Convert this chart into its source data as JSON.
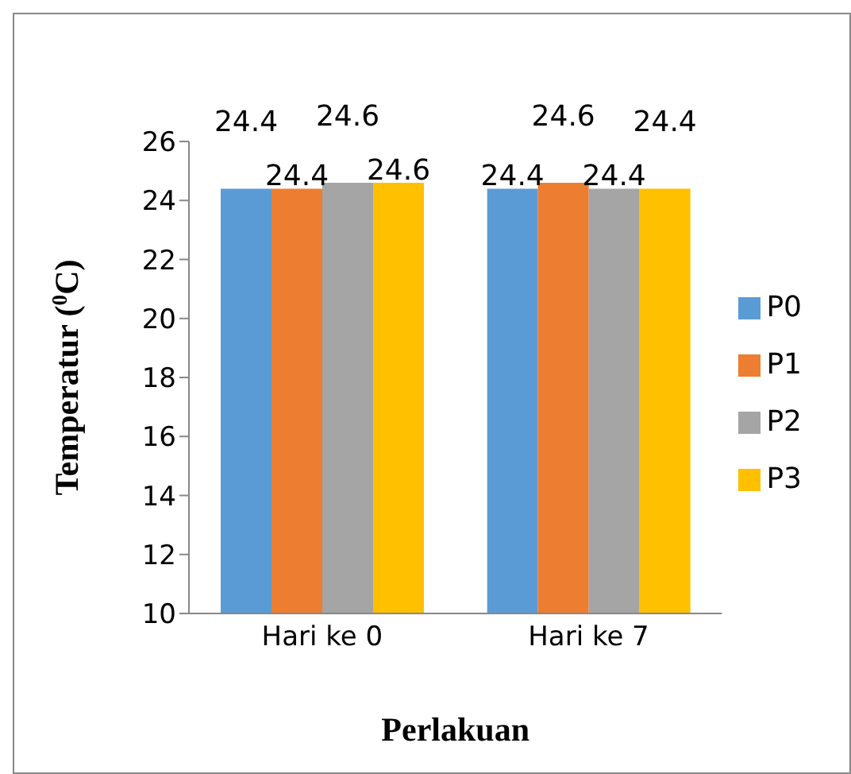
{
  "chart_data": {
    "type": "bar",
    "xlabel": "Perlakuan",
    "ylabel": "Temperatur ($^{0}$C)",
    "categories": [
      "Hari ke 0",
      "Hari ke 7"
    ],
    "series": [
      {
        "name": "P0",
        "color": "#5b9bd5",
        "values": [
          24.4,
          24.4
        ]
      },
      {
        "name": "P1",
        "color": "#ed7d31",
        "values": [
          24.4,
          24.6
        ]
      },
      {
        "name": "P2",
        "color": "#a5a5a5",
        "values": [
          24.6,
          24.4
        ]
      },
      {
        "name": "P3",
        "color": "#ffc000",
        "values": [
          24.6,
          24.4
        ]
      }
    ],
    "ylim": [
      10,
      26
    ],
    "yticks": [
      10,
      12,
      14,
      16,
      18,
      20,
      22,
      24,
      26
    ],
    "data_labels": true,
    "legend": "right",
    "grid": false
  }
}
